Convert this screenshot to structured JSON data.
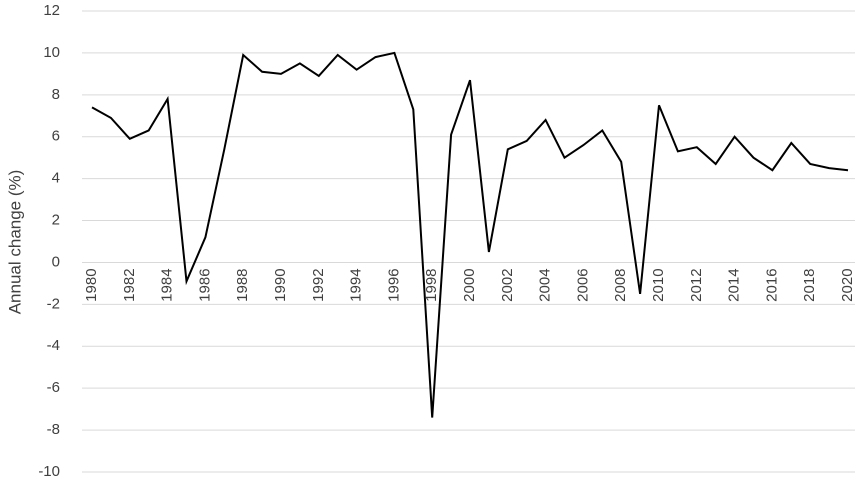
{
  "chart_data": {
    "type": "line",
    "y_label": "Annual change (%)",
    "x": [
      1980,
      1981,
      1982,
      1983,
      1984,
      1985,
      1986,
      1987,
      1988,
      1989,
      1990,
      1991,
      1992,
      1993,
      1994,
      1995,
      1996,
      1997,
      1998,
      1999,
      2000,
      2001,
      2002,
      2003,
      2004,
      2005,
      2006,
      2007,
      2008,
      2009,
      2010,
      2011,
      2012,
      2013,
      2014,
      2015,
      2016,
      2017,
      2018,
      2019,
      2020
    ],
    "series": [
      {
        "color": "#000000",
        "values": [
          7.4,
          6.9,
          5.9,
          6.3,
          7.8,
          -0.9,
          1.2,
          5.4,
          9.9,
          9.1,
          9.0,
          9.5,
          8.9,
          9.9,
          9.2,
          9.8,
          10.0,
          7.3,
          -7.4,
          6.1,
          8.7,
          0.5,
          5.4,
          5.8,
          6.8,
          5.0,
          5.6,
          6.3,
          4.8,
          -1.5,
          7.5,
          5.3,
          5.5,
          4.7,
          6.0,
          5.0,
          4.4,
          5.7,
          4.7,
          4.5,
          4.4
        ]
      }
    ],
    "xlim": [
      1980,
      2020
    ],
    "xticks": [
      1980,
      1982,
      1984,
      1986,
      1988,
      1990,
      1992,
      1994,
      1996,
      1998,
      2000,
      2002,
      2004,
      2006,
      2008,
      2010,
      2012,
      2014,
      2016,
      2018,
      2020
    ],
    "ylim": [
      -10,
      12
    ],
    "yticks": [
      -10,
      -8,
      -6,
      -4,
      -2,
      0,
      2,
      4,
      6,
      8,
      10,
      12
    ],
    "grid": true
  }
}
